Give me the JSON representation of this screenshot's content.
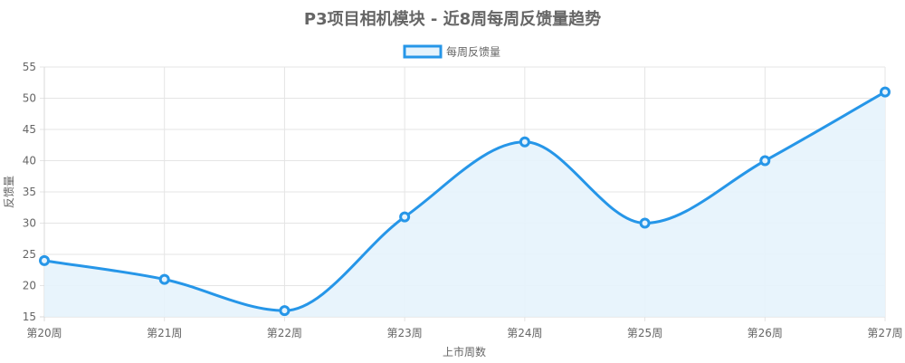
{
  "chart_data": {
    "type": "line",
    "title": "P3项目相机模块 - 近8周每周反馈量趋势",
    "xlabel": "上市周数",
    "ylabel": "反馈量",
    "categories": [
      "第20周",
      "第21周",
      "第22周",
      "第23周",
      "第24周",
      "第25周",
      "第26周",
      "第27周"
    ],
    "series": [
      {
        "name": "每周反馈量",
        "values": [
          24,
          21,
          16,
          31,
          43,
          30,
          40,
          51
        ]
      }
    ],
    "ylim": [
      15,
      55
    ],
    "yticks": [
      "55",
      "50",
      "45",
      "40",
      "35",
      "30",
      "25",
      "20",
      "15"
    ],
    "grid": true,
    "legend_position": "top",
    "fill": true,
    "colors": {
      "line": "#2696E8",
      "fill": "#E6F3FC",
      "grid": "#E5E5E5",
      "axis": "#D8D8D8"
    }
  }
}
